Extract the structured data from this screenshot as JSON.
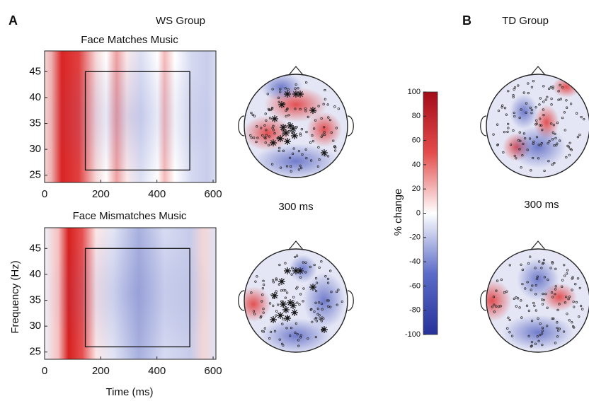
{
  "panels": [
    {
      "label": "A",
      "title": "WS Group"
    },
    {
      "label": "B",
      "title": "TD Group"
    }
  ],
  "plots": [
    {
      "title": "Face Matches Music"
    },
    {
      "title": "Face Mismatches Music"
    }
  ],
  "axes": {
    "xlabel": "Time (ms)",
    "ylabel": "Frequency (Hz)",
    "xlim": [
      0,
      610
    ],
    "xticks": [
      0,
      200,
      400,
      600
    ],
    "ylim": [
      23.6,
      49
    ],
    "yticks": [
      25,
      30,
      35,
      40,
      45
    ]
  },
  "topo_labels": [
    "300 ms",
    "300 ms"
  ],
  "colorbar": {
    "label": "% change",
    "lim": [
      -100,
      100
    ],
    "ticks": [
      100,
      80,
      60,
      40,
      20,
      0,
      -20,
      -40,
      -60,
      -80,
      -100
    ]
  }
}
